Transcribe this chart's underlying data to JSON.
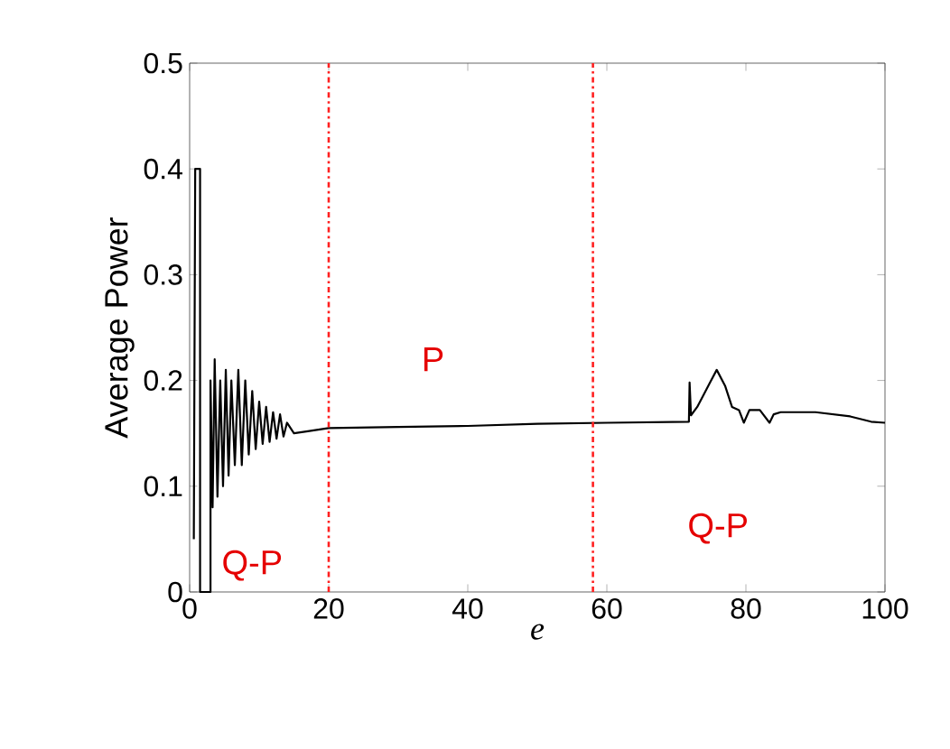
{
  "chart_data": {
    "type": "line",
    "xlabel": "e",
    "ylabel": "Average Power",
    "xlim": [
      0,
      100
    ],
    "ylim": [
      0,
      0.5
    ],
    "xticks": [
      0,
      20,
      40,
      60,
      80,
      100
    ],
    "yticks": [
      0,
      0.1,
      0.2,
      0.3,
      0.4,
      0.5
    ],
    "grid": false,
    "marker": "none",
    "line_style": "solid",
    "series": [
      {
        "color": "#000000",
        "x": [
          0.6,
          0.8,
          1.5,
          1.5,
          3,
          3,
          3.3,
          3.6,
          4,
          4.4,
          4.8,
          5.2,
          5.6,
          6,
          6.5,
          7,
          7.5,
          8,
          8.5,
          9,
          9.5,
          10,
          10.5,
          11,
          11.5,
          12,
          12.5,
          13,
          13.5,
          14,
          15,
          17,
          20,
          30,
          40,
          50,
          60,
          71.8,
          71.9,
          72.1,
          73,
          75,
          75.8,
          77,
          78,
          79,
          79.7,
          80.5,
          82,
          83.4,
          84,
          85,
          90,
          95,
          98,
          100
        ],
        "values": [
          0.05,
          0.4,
          0.4,
          0,
          0,
          0.2,
          0.08,
          0.22,
          0.09,
          0.2,
          0.1,
          0.21,
          0.11,
          0.2,
          0.12,
          0.21,
          0.12,
          0.2,
          0.13,
          0.19,
          0.135,
          0.18,
          0.14,
          0.175,
          0.142,
          0.17,
          0.145,
          0.168,
          0.147,
          0.16,
          0.15,
          0.152,
          0.155,
          0.156,
          0.157,
          0.159,
          0.16,
          0.161,
          0.198,
          0.167,
          0.175,
          0.2,
          0.21,
          0.195,
          0.175,
          0.172,
          0.16,
          0.172,
          0.172,
          0.16,
          0.168,
          0.17,
          0.17,
          0.166,
          0.161,
          0.16
        ]
      }
    ],
    "ref_lines": [
      {
        "axis": "x",
        "value": 20,
        "color": "#ff2020",
        "line_style": "dashdot"
      },
      {
        "axis": "x",
        "value": 58,
        "color": "#ff2020",
        "line_style": "dashdot"
      }
    ],
    "annotations": [
      "Q-P",
      "P",
      "Q-P"
    ]
  }
}
